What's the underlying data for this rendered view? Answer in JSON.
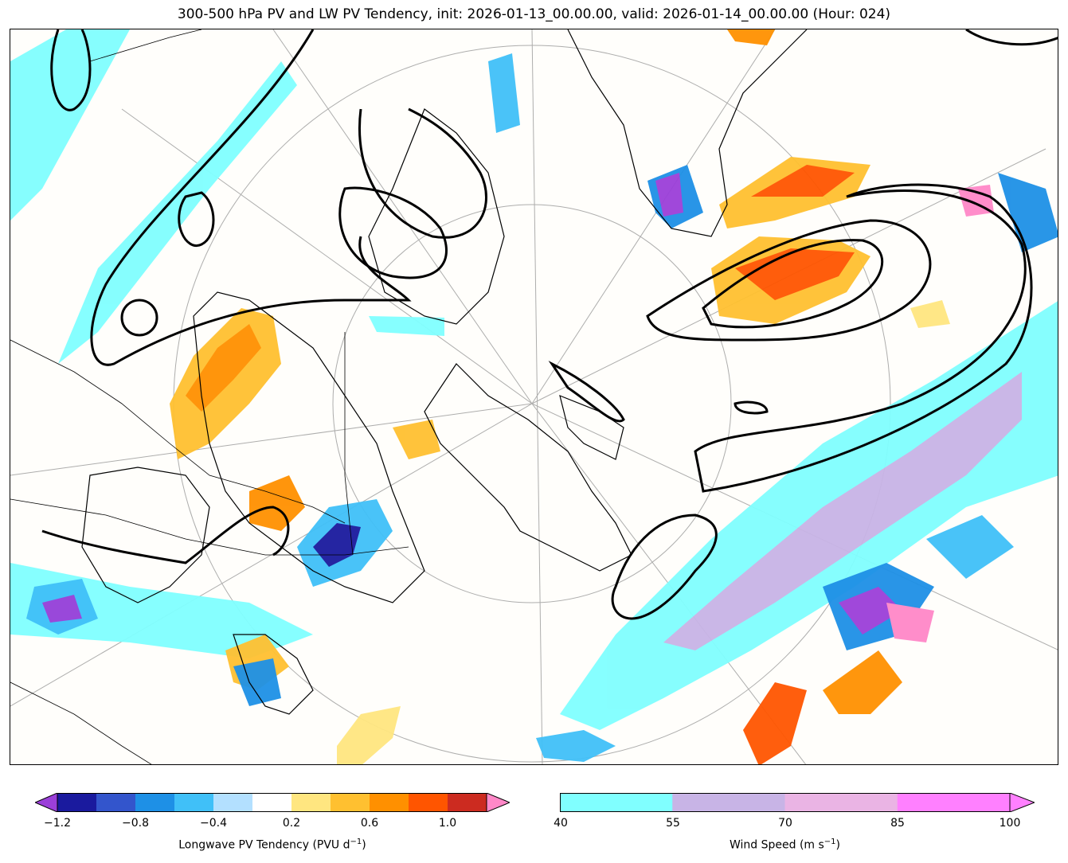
{
  "title": "300-500 hPa PV and LW PV Tendency, init: 2026-01-13_00.00.00, valid: 2026-01-14_00.00.00 (Hour: 024)",
  "map": {
    "region": "North Atlantic / Eastern Canada / Greenland",
    "fields": [
      "300-500 hPa PV contours",
      "Longwave PV tendency (shaded)",
      "Wind speed (shaded)"
    ]
  },
  "colorbar_pv": {
    "label_prefix": "Longwave PV Tendency (PVU d",
    "label_exp": "−1",
    "label_suffix": ")",
    "ticks": [
      "−1.2",
      "−0.8",
      "−0.4",
      "0.2",
      "0.6",
      "1.0"
    ],
    "colors": [
      "#1a1a9e",
      "#3355cc",
      "#1e90e6",
      "#40c0f8",
      "#b3e0ff",
      "#ffffff",
      "#ffe680",
      "#ffc030",
      "#ff9000",
      "#ff5500",
      "#cc2b20"
    ],
    "under_color": "#9b3fd9",
    "over_color": "#ff88c8"
  },
  "colorbar_wind": {
    "label_prefix": "Wind Speed (m s",
    "label_exp": "−1",
    "label_suffix": ")",
    "ticks": [
      "40",
      "55",
      "70",
      "85",
      "100"
    ],
    "colors": [
      "#80ffff",
      "#c8b4e6",
      "#eab4e4",
      "#ff80ff"
    ],
    "over_color": "#ff80ff"
  }
}
